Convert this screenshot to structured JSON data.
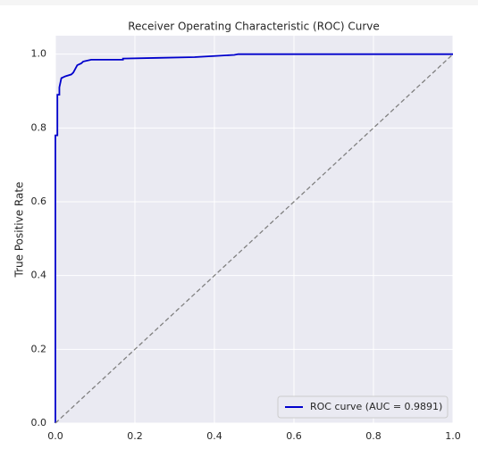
{
  "chart_data": {
    "type": "line",
    "title": "Receiver Operating Characteristic (ROC) Curve",
    "ylabel": "True Positive Rate",
    "xlim": [
      0,
      1
    ],
    "ylim": [
      0,
      1.05
    ],
    "xticks": [
      {
        "value": 0,
        "label": "0.0"
      },
      0.2,
      0.4,
      0.6,
      0.8,
      {
        "value": 1,
        "label": "1.0"
      }
    ],
    "yticks": [
      {
        "value": 0,
        "label": "0.0"
      },
      0.2,
      0.4,
      0.6,
      0.8,
      {
        "value": 1,
        "label": "1.0"
      }
    ],
    "grid": true,
    "legend": "lower right",
    "series": [
      {
        "name": "ROC curve (AUC = 0.9891)",
        "color": "#0000cc",
        "x": [
          0,
          0,
          0,
          0.005,
          0.005,
          0.01,
          0.01,
          0.012,
          0.015,
          0.025,
          0.04,
          0.045,
          0.05,
          0.055,
          0.065,
          0.07,
          0.09,
          0.17,
          0.17,
          0.26,
          0.35,
          0.4,
          0.45,
          0.46,
          1
        ],
        "values": [
          0,
          0.1,
          0.78,
          0.78,
          0.89,
          0.89,
          0.91,
          0.92,
          0.935,
          0.94,
          0.945,
          0.95,
          0.96,
          0.97,
          0.975,
          0.98,
          0.985,
          0.985,
          0.988,
          0.99,
          0.992,
          0.995,
          0.998,
          1,
          1
        ]
      },
      {
        "color": "#808080",
        "dash": true,
        "x": [
          0,
          1
        ],
        "values": [
          0,
          1
        ]
      }
    ]
  }
}
